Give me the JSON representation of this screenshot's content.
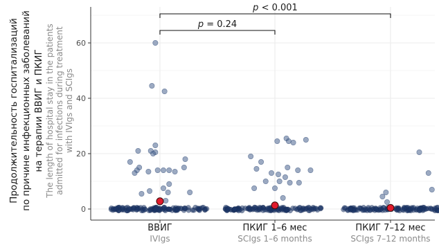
{
  "chart_data": {
    "type": "scatter",
    "ylabel_ru": [
      "Продолжительность госпитализаций",
      "по причине инфекционных заболеваний",
      "на терапии ВВИГ и ПКИГ"
    ],
    "ylabel_en": [
      "The length of hospital stay in the patients",
      "admitted for infections during treatment",
      "with IVIgs and SCIgs"
    ],
    "ylim": [
      -4,
      73
    ],
    "yticks": [
      0,
      20,
      40,
      60
    ],
    "ytick_labels": [
      "0",
      "20",
      "40",
      "60"
    ],
    "grid": true,
    "categories": [
      {
        "ru": "ВВИГ",
        "en": "IVIgs"
      },
      {
        "ru": "ПКИГ 1–6 мес",
        "en": "SCIgs 1–6 months"
      },
      {
        "ru": "ПКИГ 7–12 мес",
        "en": "SCIgs 7–12 months"
      }
    ],
    "series": [
      {
        "points": [
          {
            "g": 0,
            "x": -0.04,
            "y": 60
          },
          {
            "g": 0,
            "x": -0.07,
            "y": 44.5
          },
          {
            "g": 0,
            "x": 0.04,
            "y": 42.5
          },
          {
            "g": 0,
            "x": -0.04,
            "y": 23
          },
          {
            "g": 0,
            "x": -0.08,
            "y": 21
          },
          {
            "g": 0,
            "x": -0.19,
            "y": 21
          },
          {
            "g": 0,
            "x": -0.04,
            "y": 20.5
          },
          {
            "g": 0,
            "x": -0.06,
            "y": 20
          },
          {
            "g": 0,
            "x": 0.22,
            "y": 18
          },
          {
            "g": 0,
            "x": -0.26,
            "y": 17
          },
          {
            "g": 0,
            "x": -0.18,
            "y": 15
          },
          {
            "g": 0,
            "x": 0.21,
            "y": 15
          },
          {
            "g": 0,
            "x": -0.2,
            "y": 14
          },
          {
            "g": 0,
            "x": -0.02,
            "y": 14
          },
          {
            "g": 0,
            "x": 0.03,
            "y": 14
          },
          {
            "g": 0,
            "x": 0.08,
            "y": 14
          },
          {
            "g": 0,
            "x": 0.13,
            "y": 13.5
          },
          {
            "g": 0,
            "x": -0.1,
            "y": 13.5
          },
          {
            "g": 0,
            "x": -0.22,
            "y": 13
          },
          {
            "g": 0,
            "x": 0.08,
            "y": 9
          },
          {
            "g": 0,
            "x": 0.03,
            "y": 7.5
          },
          {
            "g": 0,
            "x": -0.09,
            "y": 6.5
          },
          {
            "g": 0,
            "x": 0.07,
            "y": 6
          },
          {
            "g": 0,
            "x": 0.26,
            "y": 6
          },
          {
            "g": 0,
            "x": -0.16,
            "y": 5.5
          },
          {
            "g": 0,
            "x": 0.05,
            "y": 3
          },
          {
            "g": 1,
            "x": 0.1,
            "y": 25.5
          },
          {
            "g": 1,
            "x": 0.02,
            "y": 24.5
          },
          {
            "g": 1,
            "x": 0.12,
            "y": 24.5
          },
          {
            "g": 1,
            "x": 0.27,
            "y": 25
          },
          {
            "g": 1,
            "x": 0.16,
            "y": 24
          },
          {
            "g": 1,
            "x": -0.21,
            "y": 19
          },
          {
            "g": 1,
            "x": -0.12,
            "y": 17
          },
          {
            "g": 1,
            "x": -0.16,
            "y": 14.5
          },
          {
            "g": 1,
            "x": 0.11,
            "y": 15
          },
          {
            "g": 1,
            "x": 0.2,
            "y": 14
          },
          {
            "g": 1,
            "x": 0.31,
            "y": 14
          },
          {
            "g": 1,
            "x": -0.03,
            "y": 13
          },
          {
            "g": 1,
            "x": 0.03,
            "y": 12.5
          },
          {
            "g": 1,
            "x": 0.09,
            "y": 11.5
          },
          {
            "g": 1,
            "x": -0.08,
            "y": 10
          },
          {
            "g": 1,
            "x": 0.04,
            "y": 10
          },
          {
            "g": 1,
            "x": 0.13,
            "y": 9.5
          },
          {
            "g": 1,
            "x": 0.21,
            "y": 9.5
          },
          {
            "g": 1,
            "x": -0.18,
            "y": 7.5
          },
          {
            "g": 1,
            "x": 0.0,
            "y": 7.5
          },
          {
            "g": 1,
            "x": 0.07,
            "y": 4
          },
          {
            "g": 2,
            "x": 0.25,
            "y": 20.5
          },
          {
            "g": 2,
            "x": 0.33,
            "y": 13
          },
          {
            "g": 2,
            "x": 0.36,
            "y": 7
          },
          {
            "g": 2,
            "x": -0.04,
            "y": 6
          },
          {
            "g": 2,
            "x": -0.07,
            "y": 4.5
          },
          {
            "g": 2,
            "x": -0.03,
            "y": 2.5
          }
        ]
      }
    ],
    "means": [
      2.8,
      1.3,
      0.4
    ],
    "comparisons": [
      {
        "from": 0,
        "to": 1,
        "y": 64.5,
        "text": "p = 0.24"
      },
      {
        "from": 0,
        "to": 2,
        "y": 70.5,
        "text": "p < 0.001"
      }
    ],
    "colors": {
      "points": "#1f3a6b",
      "mean": "#e01b2c",
      "grid": "#ebebeb",
      "axis": "#333333"
    }
  }
}
